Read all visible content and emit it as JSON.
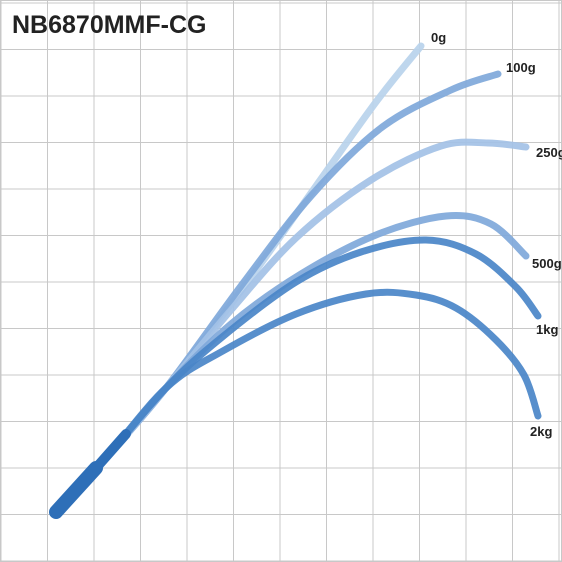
{
  "chart_data": {
    "type": "line",
    "title": "NB6870MMF-CG",
    "xlabel": "",
    "ylabel": "",
    "grid": true,
    "series": [
      {
        "name": "0g",
        "color": "#b9d2ec",
        "points": [
          [
            0,
            0
          ],
          [
            48,
            52
          ],
          [
            110,
            124
          ],
          [
            190,
            228
          ],
          [
            260,
            326
          ],
          [
            320,
            410
          ],
          [
            365,
            466
          ]
        ]
      },
      {
        "name": "100g",
        "color": "#7fa8da",
        "points": [
          [
            0,
            0
          ],
          [
            48,
            52
          ],
          [
            110,
            124
          ],
          [
            185,
            226
          ],
          [
            255,
            316
          ],
          [
            325,
            384
          ],
          [
            395,
            422
          ],
          [
            442,
            438
          ]
        ]
      },
      {
        "name": "250g",
        "color": "#a3c1e6",
        "points": [
          [
            0,
            0
          ],
          [
            48,
            52
          ],
          [
            110,
            124
          ],
          [
            175,
            202
          ],
          [
            240,
            274
          ],
          [
            315,
            332
          ],
          [
            385,
            366
          ],
          [
            432,
            369
          ],
          [
            470,
            365
          ]
        ]
      },
      {
        "name": "500g",
        "color": "#7fa8da",
        "points": [
          [
            0,
            0
          ],
          [
            48,
            52
          ],
          [
            110,
            124
          ],
          [
            175,
            188
          ],
          [
            245,
            238
          ],
          [
            320,
            277
          ],
          [
            390,
            296
          ],
          [
            435,
            288
          ],
          [
            470,
            256
          ]
        ]
      },
      {
        "name": "1kg",
        "color": "#4a86c8",
        "points": [
          [
            0,
            0
          ],
          [
            48,
            52
          ],
          [
            110,
            124
          ],
          [
            165,
            174
          ],
          [
            240,
            230
          ],
          [
            305,
            260
          ],
          [
            370,
            272
          ],
          [
            420,
            258
          ],
          [
            460,
            225
          ],
          [
            482,
            196
          ]
        ]
      },
      {
        "name": "2kg",
        "color": "#4a86c8",
        "points": [
          [
            0,
            0
          ],
          [
            48,
            52
          ],
          [
            110,
            124
          ],
          [
            165,
            160
          ],
          [
            240,
            198
          ],
          [
            310,
            218
          ],
          [
            360,
            217
          ],
          [
            400,
            204
          ],
          [
            440,
            172
          ],
          [
            468,
            137
          ],
          [
            482,
            96
          ]
        ]
      }
    ]
  }
}
